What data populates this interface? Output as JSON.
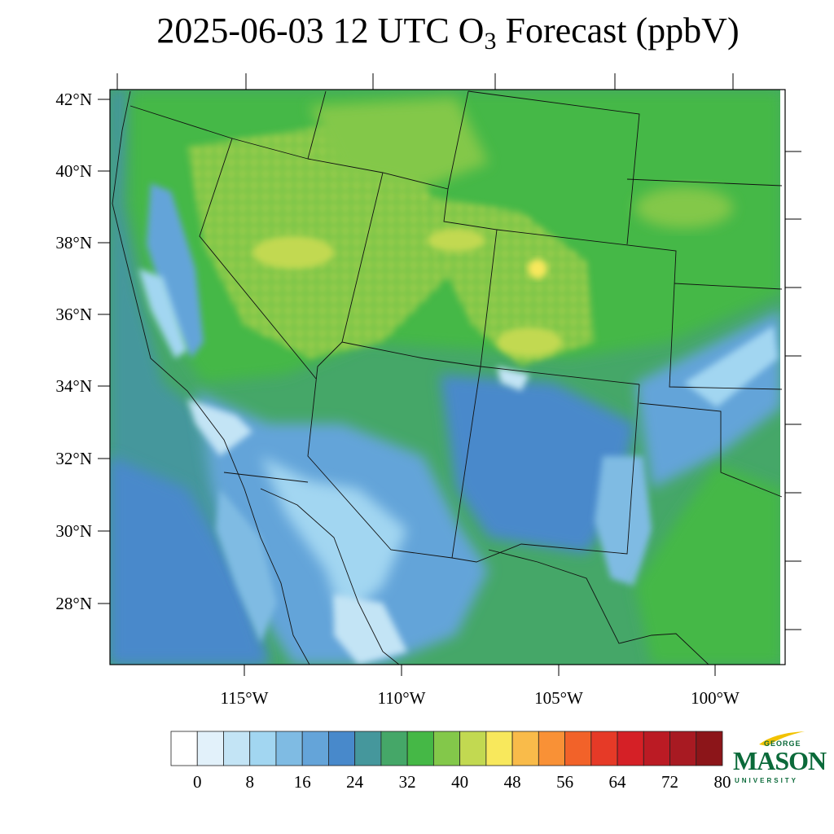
{
  "title": {
    "prefix": "2025-06-03 12 UTC O",
    "subscript": "3",
    "suffix": " Forecast (ppbV)"
  },
  "map": {
    "lat_labels": [
      "42°N",
      "40°N",
      "38°N",
      "36°N",
      "34°N",
      "32°N",
      "30°N",
      "28°N"
    ],
    "lon_labels": [
      "115°W",
      "110°W",
      "105°W",
      "100°W"
    ]
  },
  "colorbar": {
    "colors": [
      "#ffffff",
      "#e2f1fa",
      "#c3e4f5",
      "#a2d6f1",
      "#7fbbe3",
      "#64a4d9",
      "#4889cb",
      "#45979c",
      "#45a768",
      "#45b846",
      "#83c84a",
      "#c2d951",
      "#f8e85c",
      "#f9bb4a",
      "#f99136",
      "#f26229",
      "#e63a27",
      "#d52026",
      "#bb1b24",
      "#a81a22",
      "#8c1519"
    ],
    "labels": [
      "0",
      "8",
      "16",
      "24",
      "32",
      "40",
      "48",
      "56",
      "64",
      "72",
      "80"
    ]
  },
  "logo": {
    "top": "GEORGE",
    "main": "MASON",
    "bottom": "UNIVERSITY"
  }
}
